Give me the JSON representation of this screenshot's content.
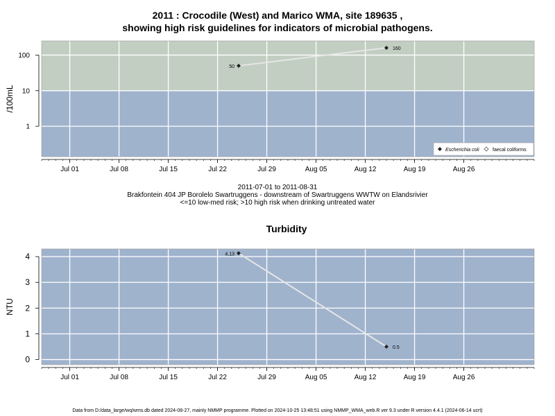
{
  "main_title_line1": "2011 : Crocodile (West) and Marico WMA, site 189635 ,",
  "main_title_line2": "showing high risk guidelines for indicators of microbial pathogens.",
  "subtitle_dates": "2011-07-01 to 2011-08-31",
  "subtitle_site": "Brakfontein 404 JP Borolelo Swartruggens - downstream of Swartruggens WWTW on Elandsrivier",
  "subtitle_risk": "<=10 low-med risk; >10 high risk when drinking untreated water",
  "footer": "Data from D:/data_large/wq/wms.db dated 2024-08-27, mainly NMMP programme. Plotted on 2024-10-25 13:48:51 using NMMP_WMA_web.R ver 9.3 under R version 4.4.1 (2024-06-14 ucrt)",
  "colors": {
    "high_risk_band": "#c2cec2",
    "low_risk_band": "#a0b3cd",
    "grid": "#ffffff",
    "series_line": "#e6e6e6",
    "point": "#222222"
  },
  "chart_data": [
    {
      "type": "scatter",
      "title": "",
      "ylabel": "/100mL",
      "xlabel": "",
      "y_scale": "log",
      "xlim": [
        "2011-06-27",
        "2011-09-05"
      ],
      "ylim_log": [
        0.14,
        250
      ],
      "threshold": 10,
      "x_ticks": [
        "2011-07-01",
        "2011-07-08",
        "2011-07-15",
        "2011-07-22",
        "2011-07-29",
        "2011-08-05",
        "2011-08-12",
        "2011-08-19",
        "2011-08-26"
      ],
      "x_tick_labels": [
        "Jul 01",
        "Jul 08",
        "Jul 15",
        "Jul 22",
        "Jul 29",
        "Aug 05",
        "Aug 12",
        "Aug 19",
        "Aug 26"
      ],
      "y_ticks": [
        1,
        10,
        100
      ],
      "y_tick_labels": [
        "1",
        "10",
        "100"
      ],
      "grid": true,
      "legend_position": "bottom-right",
      "legend": [
        "Escherichia coli",
        "faecal coliforms"
      ],
      "series": [
        {
          "name": "Escherichia coli",
          "marker": "filled-diamond",
          "x": [
            "2011-07-25",
            "2011-08-15"
          ],
          "y": [
            50,
            160
          ],
          "labels": [
            "50",
            "160"
          ]
        }
      ]
    },
    {
      "type": "line",
      "title": "Turbidity",
      "ylabel": "NTU",
      "xlabel": "",
      "xlim": [
        "2011-06-27",
        "2011-09-05"
      ],
      "ylim": [
        -0.2,
        4.3
      ],
      "x_ticks": [
        "2011-07-01",
        "2011-07-08",
        "2011-07-15",
        "2011-07-22",
        "2011-07-29",
        "2011-08-05",
        "2011-08-12",
        "2011-08-19",
        "2011-08-26"
      ],
      "x_tick_labels": [
        "Jul 01",
        "Jul 08",
        "Jul 15",
        "Jul 22",
        "Jul 29",
        "Aug 05",
        "Aug 12",
        "Aug 19",
        "Aug 26"
      ],
      "y_ticks": [
        0,
        1,
        2,
        3,
        4
      ],
      "y_tick_labels": [
        "0",
        "1",
        "2",
        "3",
        "4"
      ],
      "grid": true,
      "series": [
        {
          "marker": "filled-diamond",
          "x": [
            "2011-07-25",
            "2011-08-15"
          ],
          "y": [
            4.13,
            0.5
          ],
          "labels": [
            "4.13",
            "0.5"
          ]
        }
      ]
    }
  ]
}
